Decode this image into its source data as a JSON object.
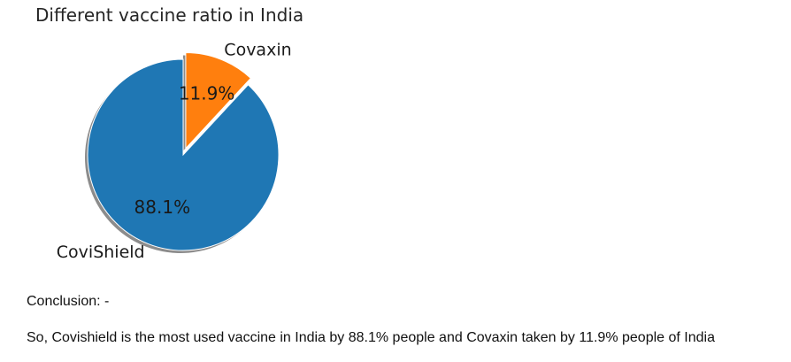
{
  "chart_data": {
    "type": "pie",
    "title": "Different vaccine ratio in India",
    "slices": [
      {
        "label": "CoviShield",
        "value": 88.1,
        "pct_label": "88.1%",
        "color": "#1f77b4",
        "explode": false
      },
      {
        "label": "Covaxin",
        "value": 11.9,
        "pct_label": "11.9%",
        "color": "#ff7f0e",
        "explode": true
      }
    ],
    "start_angle": 90,
    "shadow": true
  },
  "conclusion": {
    "label": "Conclusion: -",
    "text": "So, Covishield is the most used vaccine in India by 88.1% people and Covaxin taken by 11.9% people of India"
  }
}
